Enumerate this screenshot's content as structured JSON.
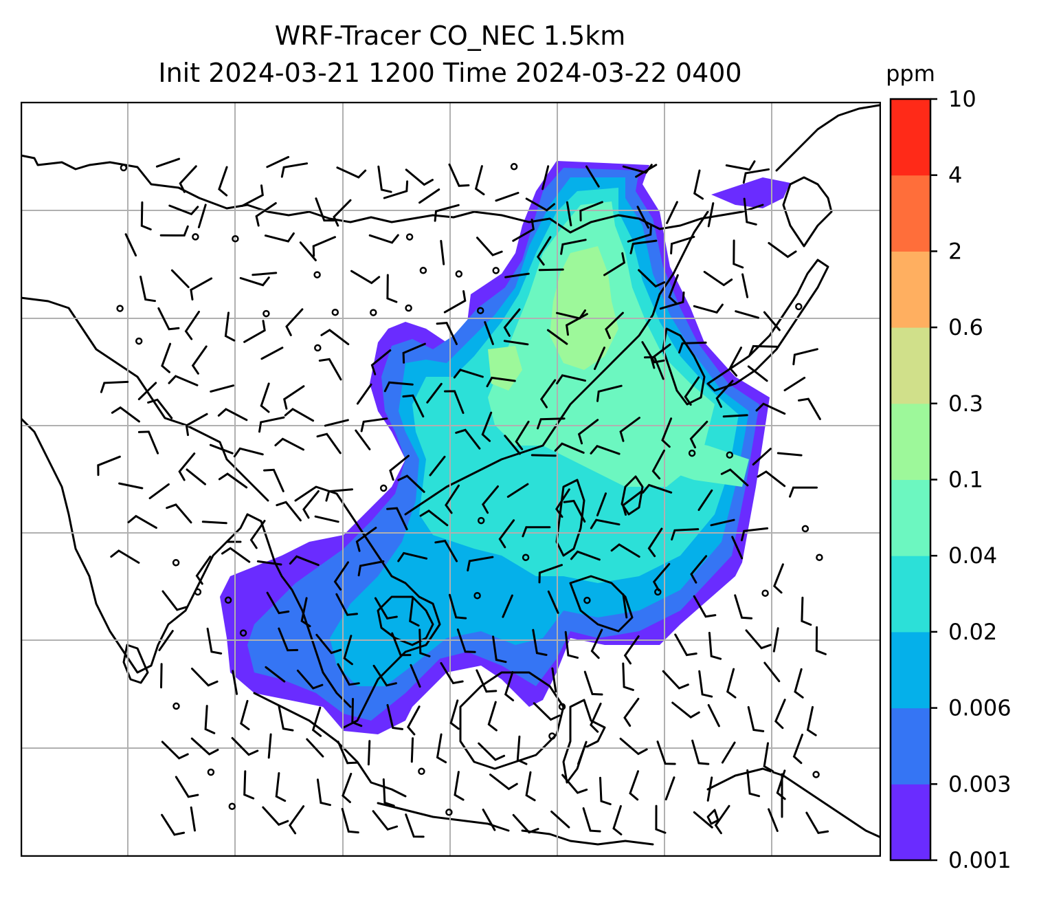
{
  "title": {
    "line1": "WRF-Tracer CO_NEC 1.5km",
    "line2": "Init 2024-03-21 1200 Time 2024-03-22 0400"
  },
  "colorbar": {
    "unit": "ppm",
    "levels": [
      "0.001",
      "0.003",
      "0.006",
      "0.02",
      "0.04",
      "0.1",
      "0.3",
      "0.6",
      "2",
      "4",
      "10"
    ],
    "colors": [
      "#6a2cff",
      "#3575f4",
      "#05b0ea",
      "#2ce0d8",
      "#6cf7c0",
      "#9df89a",
      "#d0e08a",
      "#ffaf60",
      "#ff6e3a",
      "#ff2a18"
    ]
  },
  "map": {
    "plume_colors": {
      "edge": "#6a2cff",
      "outer": "#3575f4",
      "mid": "#05b0ea",
      "inner": "#2ce0d8",
      "core": "#6cf7c0",
      "peak": "#9df89a"
    },
    "coastline_color": "#000000",
    "gridline_color": "#b0b0b0"
  }
}
